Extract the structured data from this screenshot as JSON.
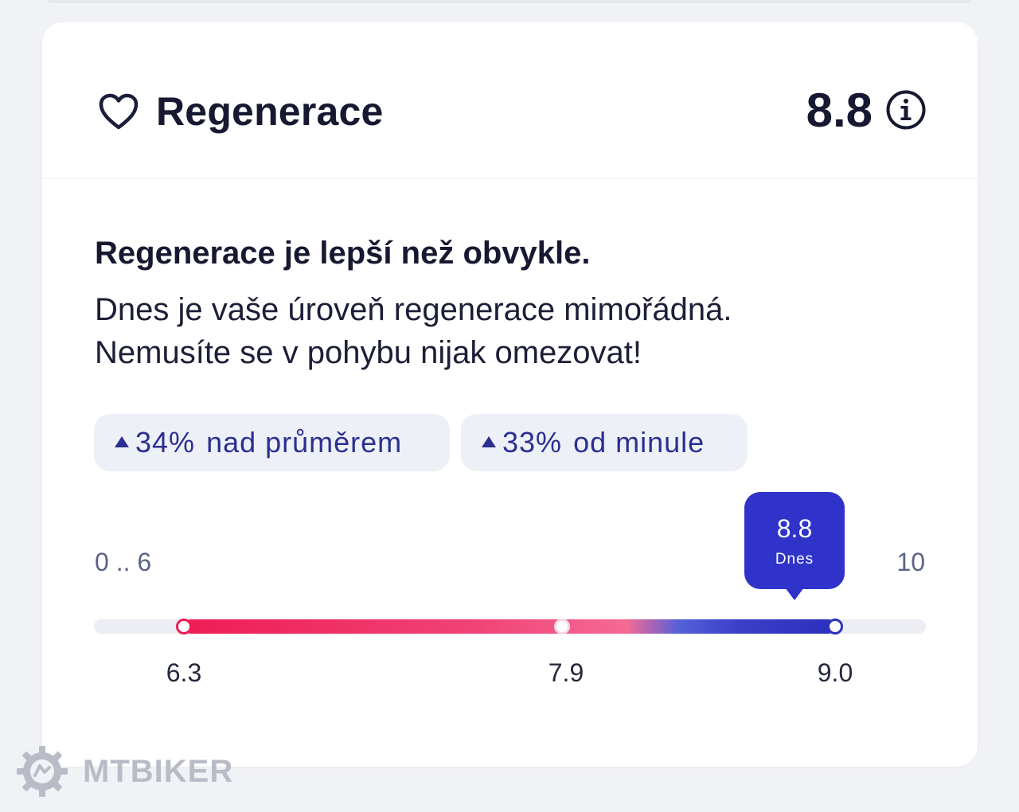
{
  "card": {
    "title": "Regenerace",
    "score": "8.8",
    "icons": {
      "title_icon": "heart-icon",
      "info_icon": "info-icon"
    }
  },
  "summary": {
    "headline": "Regenerace je lepší než obvykle.",
    "line1": "Dnes je vaše úroveň regenerace mimořádná.",
    "line2": "Nemusíte se v pohybu nijak omezovat!"
  },
  "chips": [
    {
      "value": "34%",
      "text": "nad průměrem",
      "icon": "triangle-up-icon"
    },
    {
      "value": "33%",
      "text": "od minule",
      "icon": "triangle-up-icon"
    }
  ],
  "range": {
    "min_label": "0 .. 6",
    "max_label": "10",
    "today_value": "8.8",
    "today_label": "Dnes",
    "ticks": [
      "6.3",
      "7.9",
      "9.0"
    ],
    "gradient_colors": [
      "#ee1d55",
      "#f56a95",
      "#2b30bd"
    ]
  },
  "watermark": {
    "text": "MTBIKER"
  }
}
